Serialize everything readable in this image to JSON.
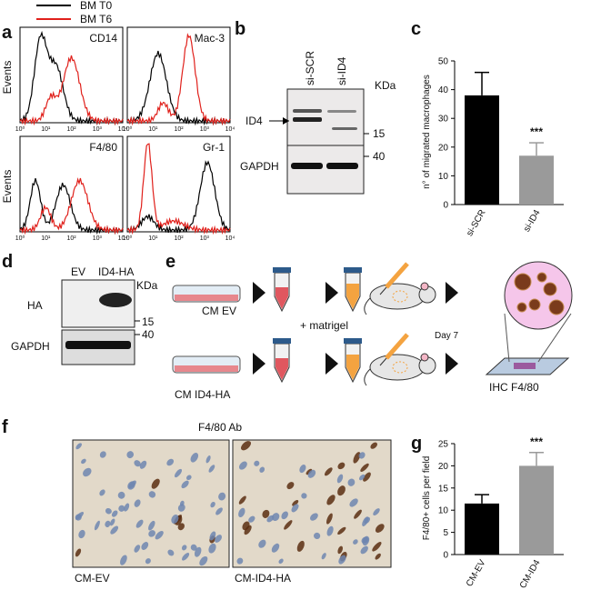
{
  "panel_labels": [
    "a",
    "b",
    "c",
    "d",
    "e",
    "f",
    "g"
  ],
  "panel_a": {
    "legend": [
      {
        "name": "BM T0",
        "color": "#000000"
      },
      {
        "name": "BM T6",
        "color": "#e0201b"
      }
    ],
    "y_label": "Events",
    "plots": [
      "CD14",
      "Mac-3",
      "F4/80",
      "Gr-1"
    ],
    "x_ticks": [
      "10⁰",
      "10¹",
      "10²",
      "10³",
      "10⁴"
    ]
  },
  "panel_b": {
    "lanes": [
      "si-SCR",
      "si-ID4"
    ],
    "unit": "KDa",
    "bands": [
      "ID4",
      "GAPDH"
    ],
    "markers": [
      "15",
      "40"
    ]
  },
  "panel_d": {
    "lanes": [
      "EV",
      "ID4-HA"
    ],
    "unit": "KDa",
    "bands": [
      "HA",
      "GAPDH"
    ],
    "markers": [
      "15",
      "40"
    ]
  },
  "panel_e": {
    "rows": [
      "CM EV",
      "CM ID4-HA"
    ],
    "step": "+ matrigel",
    "time": "Day 7",
    "readout": "IHC F4/80"
  },
  "panel_f": {
    "title": "F4/80 Ab",
    "captions": [
      "CM-EV",
      "CM-ID4-HA"
    ]
  },
  "chart_data": [
    {
      "type": "bar",
      "y_label": "n° of migrated macrophages",
      "categories": [
        "si-SCR",
        "si-ID4"
      ],
      "values": [
        38,
        17
      ],
      "errors": [
        8,
        4.5
      ],
      "colors": [
        "#000000",
        "#9a9a9a"
      ],
      "ylim": [
        0,
        50
      ],
      "yticks": [
        0,
        10,
        20,
        30,
        40,
        50
      ],
      "annotation": "***"
    },
    {
      "type": "bar",
      "y_label": "F4/80+ cells per field",
      "categories": [
        "CM-EV",
        "CM-ID4"
      ],
      "values": [
        11.5,
        20
      ],
      "errors": [
        2,
        3
      ],
      "colors": [
        "#000000",
        "#9a9a9a"
      ],
      "ylim": [
        0,
        25
      ],
      "yticks": [
        0,
        5,
        10,
        15,
        20,
        25
      ],
      "annotation": "***"
    }
  ]
}
